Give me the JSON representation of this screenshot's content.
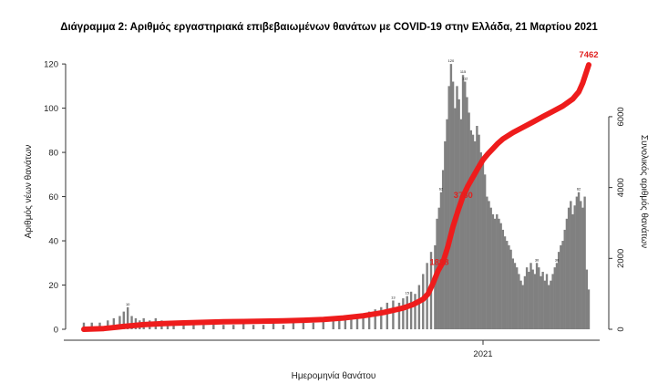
{
  "chart_data": {
    "type": "bar",
    "title": "Διάγραμμα 2: Αριθμός εργαστηριακά επιβεβαιωμένων θανάτων με COVID-19 στην Ελλάδα, 21 Μαρτίου 2021",
    "xlabel": "Ημερομηνία θανάτου",
    "ylabel_left": "Αριθμός νέων θανάτων",
    "ylabel_right": "Συνολικός αριθμός θανάτων",
    "x_tick_labels": [
      "2021"
    ],
    "y_ticks_left": [
      "0",
      "20",
      "40",
      "60",
      "80",
      "100",
      "120"
    ],
    "y_ticks_right": [
      "0",
      "2000",
      "4000",
      "6000"
    ],
    "ylim_left": [
      0,
      125
    ],
    "ylim_right": [
      0,
      7800
    ],
    "grid": false,
    "series": [
      {
        "role": "daily",
        "color": "#808080",
        "bars": [
          [
            0,
            3
          ],
          [
            8,
            3
          ],
          [
            16,
            3
          ],
          [
            24,
            4
          ],
          [
            30,
            5
          ],
          [
            36,
            6
          ],
          [
            40,
            8
          ],
          [
            44,
            10
          ],
          [
            48,
            6
          ],
          [
            52,
            5
          ],
          [
            56,
            4
          ],
          [
            60,
            5
          ],
          [
            66,
            4
          ],
          [
            72,
            5
          ],
          [
            78,
            4
          ],
          [
            84,
            3
          ],
          [
            90,
            3
          ],
          [
            100,
            2
          ],
          [
            110,
            3
          ],
          [
            120,
            2
          ],
          [
            130,
            3
          ],
          [
            140,
            2
          ],
          [
            150,
            2
          ],
          [
            160,
            3
          ],
          [
            170,
            2
          ],
          [
            180,
            2
          ],
          [
            190,
            3
          ],
          [
            200,
            2
          ],
          [
            210,
            3
          ],
          [
            220,
            4
          ],
          [
            230,
            3
          ],
          [
            240,
            4
          ],
          [
            250,
            4
          ],
          [
            256,
            5
          ],
          [
            262,
            6
          ],
          [
            268,
            5
          ],
          [
            274,
            6
          ],
          [
            280,
            7
          ],
          [
            286,
            8
          ],
          [
            292,
            9
          ],
          [
            298,
            10
          ],
          [
            304,
            12
          ],
          [
            310,
            13
          ],
          [
            316,
            12
          ],
          [
            320,
            14
          ],
          [
            324,
            15
          ],
          [
            328,
            17
          ],
          [
            332,
            16
          ],
          [
            336,
            20
          ],
          [
            340,
            25
          ],
          [
            344,
            30
          ],
          [
            348,
            35
          ],
          [
            352,
            38
          ],
          [
            354,
            50
          ],
          [
            356,
            55
          ],
          [
            358,
            62
          ],
          [
            360,
            72
          ],
          [
            362,
            85
          ],
          [
            364,
            95
          ],
          [
            366,
            110
          ],
          [
            368,
            120
          ],
          [
            370,
            112
          ],
          [
            372,
            100
          ],
          [
            374,
            110
          ],
          [
            376,
            104
          ],
          [
            378,
            95
          ],
          [
            380,
            115
          ],
          [
            382,
            112
          ],
          [
            384,
            105
          ],
          [
            386,
            98
          ],
          [
            388,
            90
          ],
          [
            390,
            88
          ],
          [
            392,
            85
          ],
          [
            394,
            92
          ],
          [
            396,
            88
          ],
          [
            398,
            80
          ],
          [
            400,
            75
          ],
          [
            402,
            70
          ],
          [
            404,
            60
          ],
          [
            406,
            58
          ],
          [
            408,
            55
          ],
          [
            410,
            52
          ],
          [
            412,
            50
          ],
          [
            414,
            52
          ],
          [
            416,
            50
          ],
          [
            418,
            48
          ],
          [
            420,
            45
          ],
          [
            422,
            42
          ],
          [
            424,
            40
          ],
          [
            426,
            38
          ],
          [
            428,
            36
          ],
          [
            430,
            32
          ],
          [
            432,
            30
          ],
          [
            434,
            28
          ],
          [
            436,
            25
          ],
          [
            438,
            22
          ],
          [
            440,
            20
          ],
          [
            442,
            24
          ],
          [
            444,
            28
          ],
          [
            446,
            26
          ],
          [
            448,
            30
          ],
          [
            450,
            27
          ],
          [
            452,
            25
          ],
          [
            454,
            30
          ],
          [
            456,
            28
          ],
          [
            458,
            24
          ],
          [
            460,
            26
          ],
          [
            462,
            22
          ],
          [
            464,
            25
          ],
          [
            466,
            20
          ],
          [
            468,
            22
          ],
          [
            470,
            25
          ],
          [
            472,
            28
          ],
          [
            474,
            30
          ],
          [
            476,
            35
          ],
          [
            478,
            38
          ],
          [
            480,
            40
          ],
          [
            482,
            45
          ],
          [
            484,
            50
          ],
          [
            486,
            55
          ],
          [
            488,
            58
          ],
          [
            490,
            52
          ],
          [
            492,
            56
          ],
          [
            494,
            60
          ],
          [
            496,
            62
          ],
          [
            498,
            58
          ],
          [
            500,
            55
          ],
          [
            502,
            60
          ],
          [
            504,
            27
          ],
          [
            506,
            18
          ]
        ],
        "bar_labels": [
          {
            "x": 44,
            "y": 10,
            "text": "10"
          },
          {
            "x": 368,
            "y": 120,
            "text": "120"
          },
          {
            "x": 380,
            "y": 115,
            "text": "115"
          },
          {
            "x": 382,
            "y": 112,
            "text": "112"
          },
          {
            "x": 358,
            "y": 62,
            "text": "62"
          },
          {
            "x": 496,
            "y": 62,
            "text": "62"
          },
          {
            "x": 454,
            "y": 30,
            "text": "30"
          },
          {
            "x": 474,
            "y": 30,
            "text": "30"
          },
          {
            "x": 310,
            "y": 13,
            "text": "13"
          },
          {
            "x": 324,
            "y": 15,
            "text": "15"
          }
        ]
      },
      {
        "role": "cumulative",
        "color": "#ee1c1c",
        "points": [
          [
            0,
            0
          ],
          [
            20,
            20
          ],
          [
            40,
            80
          ],
          [
            60,
            130
          ],
          [
            80,
            160
          ],
          [
            100,
            180
          ],
          [
            120,
            195
          ],
          [
            140,
            210
          ],
          [
            160,
            220
          ],
          [
            180,
            230
          ],
          [
            200,
            240
          ],
          [
            220,
            255
          ],
          [
            240,
            275
          ],
          [
            260,
            320
          ],
          [
            280,
            380
          ],
          [
            300,
            470
          ],
          [
            320,
            600
          ],
          [
            330,
            700
          ],
          [
            340,
            850
          ],
          [
            345,
            1000
          ],
          [
            350,
            1300
          ],
          [
            355,
            1650
          ],
          [
            360,
            1900
          ],
          [
            365,
            2350
          ],
          [
            370,
            2900
          ],
          [
            375,
            3350
          ],
          [
            380,
            3750
          ],
          [
            385,
            4050
          ],
          [
            390,
            4300
          ],
          [
            395,
            4550
          ],
          [
            400,
            4780
          ],
          [
            405,
            4950
          ],
          [
            410,
            5100
          ],
          [
            415,
            5250
          ],
          [
            420,
            5370
          ],
          [
            430,
            5550
          ],
          [
            440,
            5700
          ],
          [
            450,
            5850
          ],
          [
            460,
            6000
          ],
          [
            470,
            6150
          ],
          [
            480,
            6300
          ],
          [
            490,
            6500
          ],
          [
            496,
            6700
          ],
          [
            500,
            6950
          ],
          [
            506,
            7462
          ]
        ],
        "labels": [
          {
            "x": 358,
            "y": 1898,
            "text": "1898"
          },
          {
            "x": 382,
            "y": 3780,
            "text": "3780"
          },
          {
            "x": 506,
            "y": 7462,
            "text": "7462"
          }
        ]
      }
    ]
  }
}
